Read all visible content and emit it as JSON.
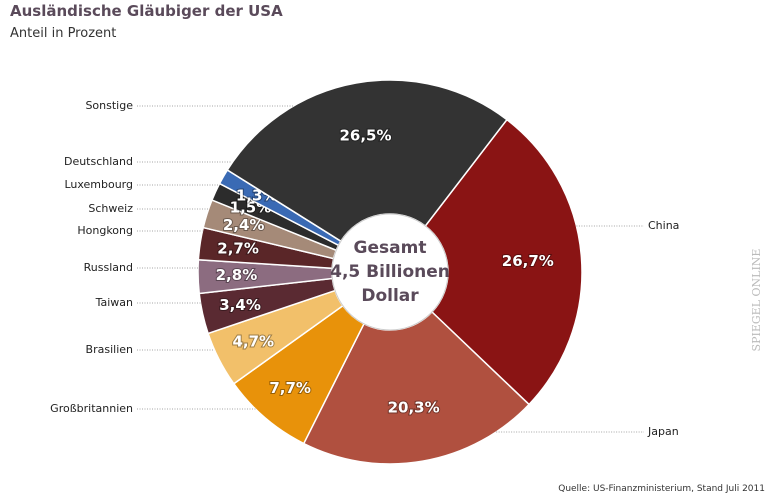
{
  "chart_data": {
    "type": "donut",
    "title": "Ausländische Gläubiger der USA",
    "subtitle": "Anteil in Prozent",
    "categories": [
      "China",
      "Japan",
      "Großbritannien",
      "Brasilien",
      "Taiwan",
      "Russland",
      "Hongkong",
      "Schweiz",
      "Luxembourg",
      "Deutschland",
      "Sonstige"
    ],
    "values": [
      26.7,
      20.3,
      7.7,
      4.7,
      3.4,
      2.8,
      2.7,
      2.4,
      1.5,
      1.3,
      26.5
    ],
    "value_labels": [
      "26,7%",
      "20,3%",
      "7,7%",
      "4,7%",
      "3,4%",
      "2,8%",
      "2,7%",
      "2,4%",
      "1,5%",
      "1,3%",
      "26,5%"
    ],
    "colors": [
      "#8a1414",
      "#b0503f",
      "#e8920a",
      "#f2c06a",
      "#5a2a32",
      "#8c6c80",
      "#5a2628",
      "#a58a78",
      "#2c2c2c",
      "#3a6ab4",
      "#333333"
    ],
    "center_label": [
      "Gesamt",
      "4,5 Billionen",
      "Dollar"
    ],
    "source": "Quelle: US-Finanzministerium, Stand Juli 2011",
    "watermark": "SPIEGEL ONLINE"
  }
}
